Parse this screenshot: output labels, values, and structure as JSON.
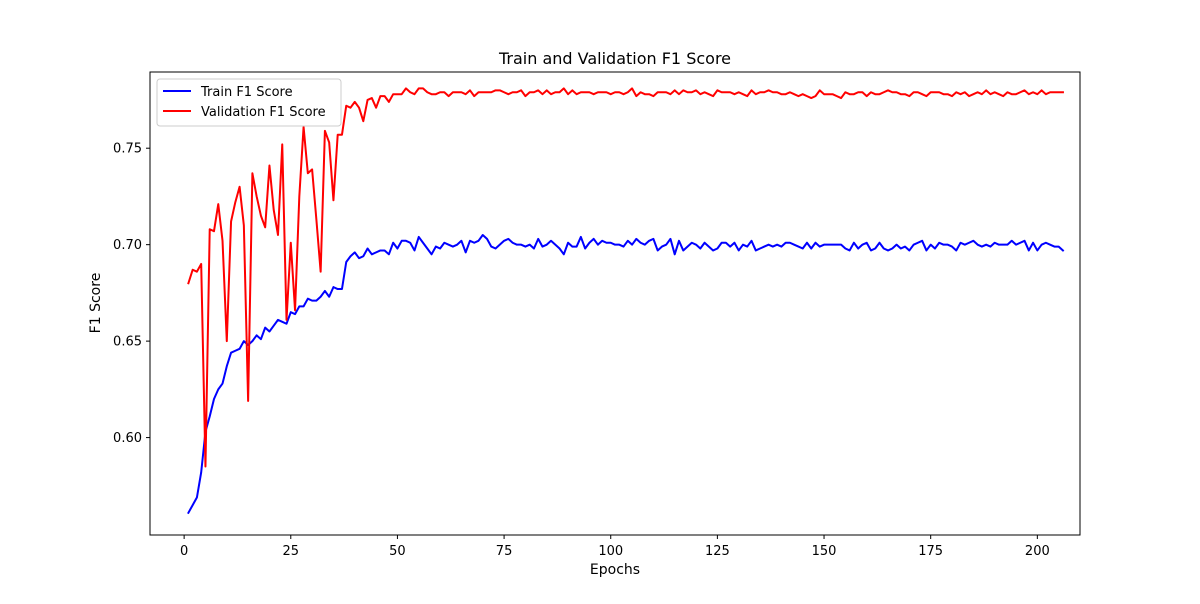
{
  "chart_data": {
    "type": "line",
    "title": "Train and Validation F1 Score",
    "xlabel": "Epochs",
    "ylabel": "F1 Score",
    "xlim": [
      -8,
      210
    ],
    "ylim": [
      0.5495,
      0.7895
    ],
    "xticks": [
      0,
      25,
      50,
      75,
      100,
      125,
      150,
      175,
      200
    ],
    "xtick_labels": [
      "0",
      "25",
      "50",
      "75",
      "100",
      "125",
      "150",
      "175",
      "200"
    ],
    "yticks": [
      0.6,
      0.65,
      0.7,
      0.75
    ],
    "ytick_labels": [
      "0.60",
      "0.65",
      "0.70",
      "0.75"
    ],
    "grid": false,
    "legend_position": "upper-left",
    "series": [
      {
        "name": "Train F1 Score",
        "color": "#0000ff",
        "x_start": 1,
        "x_step": 1,
        "values": [
          0.561,
          0.565,
          0.569,
          0.582,
          0.603,
          0.611,
          0.62,
          0.625,
          0.628,
          0.637,
          0.644,
          0.645,
          0.646,
          0.65,
          0.648,
          0.65,
          0.653,
          0.651,
          0.657,
          0.655,
          0.658,
          0.661,
          0.66,
          0.659,
          0.665,
          0.664,
          0.668,
          0.668,
          0.672,
          0.671,
          0.671,
          0.673,
          0.676,
          0.673,
          0.678,
          0.677,
          0.677,
          0.691,
          0.694,
          0.696,
          0.693,
          0.694,
          0.698,
          0.695,
          0.696,
          0.697,
          0.697,
          0.695,
          0.701,
          0.698,
          0.702,
          0.702,
          0.701,
          0.697,
          0.704,
          0.701,
          0.698,
          0.695,
          0.699,
          0.698,
          0.701,
          0.7,
          0.699,
          0.7,
          0.702,
          0.696,
          0.702,
          0.701,
          0.702,
          0.705,
          0.703,
          0.699,
          0.698,
          0.7,
          0.702,
          0.703,
          0.701,
          0.7,
          0.7,
          0.699,
          0.7,
          0.698,
          0.703,
          0.699,
          0.7,
          0.702,
          0.7,
          0.698,
          0.695,
          0.701,
          0.699,
          0.699,
          0.704,
          0.698,
          0.701,
          0.703,
          0.7,
          0.702,
          0.701,
          0.701,
          0.7,
          0.7,
          0.699,
          0.702,
          0.7,
          0.703,
          0.701,
          0.7,
          0.702,
          0.703,
          0.697,
          0.699,
          0.7,
          0.703,
          0.695,
          0.702,
          0.697,
          0.699,
          0.701,
          0.7,
          0.698,
          0.701,
          0.699,
          0.697,
          0.698,
          0.701,
          0.701,
          0.699,
          0.701,
          0.697,
          0.7,
          0.699,
          0.702,
          0.697,
          0.698,
          0.699,
          0.7,
          0.699,
          0.7,
          0.699,
          0.701,
          0.701,
          0.7,
          0.699,
          0.698,
          0.701,
          0.698,
          0.701,
          0.699,
          0.7,
          0.7,
          0.7,
          0.7,
          0.7,
          0.698,
          0.697,
          0.701,
          0.698,
          0.7,
          0.701,
          0.697,
          0.698,
          0.701,
          0.698,
          0.697,
          0.698,
          0.7,
          0.698,
          0.699,
          0.697,
          0.7,
          0.701,
          0.702,
          0.697,
          0.7,
          0.698,
          0.701,
          0.7,
          0.7,
          0.699,
          0.697,
          0.701,
          0.7,
          0.701,
          0.702,
          0.7,
          0.699,
          0.7,
          0.699,
          0.701,
          0.7,
          0.7,
          0.7,
          0.702,
          0.7,
          0.701,
          0.702,
          0.697,
          0.701,
          0.697,
          0.7,
          0.701,
          0.7,
          0.699,
          0.699,
          0.697
        ]
      },
      {
        "name": "Validation F1 Score",
        "color": "#ff0000",
        "x_start": 1,
        "x_step": 1,
        "values": [
          0.68,
          0.687,
          0.686,
          0.69,
          0.585,
          0.708,
          0.707,
          0.721,
          0.702,
          0.65,
          0.712,
          0.722,
          0.73,
          0.71,
          0.619,
          0.737,
          0.725,
          0.715,
          0.709,
          0.741,
          0.718,
          0.705,
          0.752,
          0.661,
          0.701,
          0.666,
          0.725,
          0.761,
          0.737,
          0.739,
          0.713,
          0.686,
          0.759,
          0.753,
          0.723,
          0.757,
          0.757,
          0.772,
          0.771,
          0.774,
          0.771,
          0.764,
          0.775,
          0.776,
          0.771,
          0.777,
          0.777,
          0.774,
          0.778,
          0.778,
          0.778,
          0.781,
          0.779,
          0.778,
          0.781,
          0.781,
          0.779,
          0.778,
          0.778,
          0.779,
          0.779,
          0.777,
          0.779,
          0.779,
          0.779,
          0.778,
          0.78,
          0.777,
          0.779,
          0.779,
          0.779,
          0.779,
          0.78,
          0.78,
          0.779,
          0.778,
          0.779,
          0.779,
          0.78,
          0.777,
          0.779,
          0.779,
          0.78,
          0.778,
          0.78,
          0.778,
          0.779,
          0.779,
          0.781,
          0.778,
          0.78,
          0.778,
          0.779,
          0.779,
          0.779,
          0.778,
          0.779,
          0.779,
          0.779,
          0.778,
          0.779,
          0.779,
          0.778,
          0.779,
          0.781,
          0.777,
          0.779,
          0.778,
          0.778,
          0.777,
          0.779,
          0.779,
          0.779,
          0.778,
          0.78,
          0.778,
          0.78,
          0.779,
          0.779,
          0.78,
          0.778,
          0.779,
          0.778,
          0.777,
          0.78,
          0.779,
          0.779,
          0.779,
          0.778,
          0.779,
          0.778,
          0.777,
          0.78,
          0.778,
          0.779,
          0.779,
          0.78,
          0.779,
          0.779,
          0.778,
          0.778,
          0.779,
          0.778,
          0.777,
          0.778,
          0.777,
          0.776,
          0.777,
          0.78,
          0.778,
          0.778,
          0.778,
          0.777,
          0.776,
          0.779,
          0.778,
          0.778,
          0.779,
          0.779,
          0.777,
          0.779,
          0.778,
          0.778,
          0.779,
          0.78,
          0.779,
          0.779,
          0.778,
          0.778,
          0.777,
          0.779,
          0.779,
          0.778,
          0.777,
          0.779,
          0.779,
          0.779,
          0.778,
          0.778,
          0.777,
          0.779,
          0.778,
          0.779,
          0.777,
          0.778,
          0.779,
          0.778,
          0.78,
          0.778,
          0.779,
          0.778,
          0.777,
          0.779,
          0.778,
          0.778,
          0.779,
          0.78,
          0.778,
          0.779,
          0.778,
          0.78,
          0.778,
          0.779,
          0.779,
          0.779,
          0.779
        ]
      }
    ]
  }
}
